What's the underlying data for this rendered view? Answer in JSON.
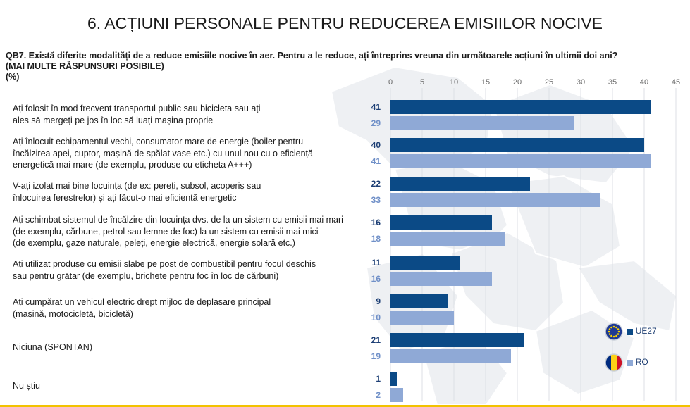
{
  "title": "6. ACȚIUNI PERSONALE PENTRU REDUCEREA EMISIILOR NOCIVE",
  "question": {
    "line1": "QB7. Există diferite modalități de a reduce emisiile nocive în aer. Pentru a le reduce, ați întreprins vreuna din următoarele acțiuni în ultimii doi ani?",
    "line2": "(MAI MULTE RĂSPUNSURI POSIBILE)",
    "line3": "(%)"
  },
  "colors": {
    "ue27": "#0b4a86",
    "ro": "#8fa9d6",
    "ue27_label": "#1d3f75",
    "ro_label": "#7090c8",
    "accent_line": "#f2c200"
  },
  "legend": {
    "ue27": "UE27",
    "ro": "RO",
    "ue27_icon": "eu-flag-icon",
    "ro_icon": "romania-flag-icon"
  },
  "chart_data": {
    "type": "bar",
    "orientation": "horizontal",
    "xlim": [
      0,
      45
    ],
    "xticks": [
      0,
      5,
      10,
      15,
      20,
      25,
      30,
      35,
      40,
      45
    ],
    "grid": true,
    "legend_position": "bottom-right",
    "categories": [
      "Ați folosit în mod frecvent transportul public sau bicicleta sau ați ales să mergeți pe jos în loc să luați mașina proprie",
      "Ați înlocuit echipamentul vechi, consumator mare de energie (boiler pentru încălzirea apei, cuptor, mașină de spălat vase etc.) cu unul nou cu o eficiență energetică mai mare (de exemplu, produse cu eticheta A+++)",
      "V-ați izolat mai bine locuința (de ex: pereți, subsol, acoperiș sau înlocuirea ferestrelor) și ați făcut-o mai eficientă energetic",
      "Ați schimbat sistemul de încălzire din locuința dvs. de la un sistem cu emisii mai mari (de exemplu, cărbune, petrol sau lemne de foc) la un sistem cu emisii mai mici (de exemplu, gaze naturale, peleți, energie electrică, energie solară etc.)",
      "Ați utilizat produse cu emisii slabe pe post de combustibil pentru focul deschis sau pentru grătar (de exemplu, brichete pentru foc în loc de cărbuni)",
      "Ați cumpărat un vehicul electric drept mijloc de deplasare principal (mașină, motocicletă, bicicletă)",
      "Niciuna (SPONTAN)",
      "Nu știu"
    ],
    "label_lines": [
      [
        "Ați folosit în mod frecvent transportul public sau bicicleta sau ați",
        "ales să mergeți pe jos în loc să luați mașina proprie"
      ],
      [
        "Ați înlocuit echipamentul vechi, consumator mare de energie (boiler pentru",
        "încălzirea apei, cuptor, mașină de spălat vase etc.) cu unul nou cu o eficiență",
        "energetică mai mare (de exemplu, produse cu eticheta A+++)"
      ],
      [
        "V-ați izolat mai bine locuința (de ex: pereți, subsol, acoperiș sau",
        "înlocuirea ferestrelor) și ați făcut-o mai eficientă energetic"
      ],
      [
        "Ați schimbat sistemul de încălzire din locuința dvs. de la un sistem cu emisii mai mari",
        "(de exemplu, cărbune, petrol sau lemne de foc) la un sistem cu emisii mai mici",
        "(de exemplu, gaze naturale, peleți, energie electrică, energie solară etc.)"
      ],
      [
        "Ați utilizat produse cu emisii slabe pe post de combustibil pentru focul deschis",
        "sau pentru grătar (de exemplu, brichete pentru foc în loc de cărbuni)"
      ],
      [
        "Ați cumpărat un vehicul electric drept mijloc de deplasare principal",
        "(mașină, motocicletă, bicicletă)"
      ],
      [
        "Niciuna (SPONTAN)"
      ],
      [
        "Nu știu"
      ]
    ],
    "series": [
      {
        "name": "UE27",
        "values": [
          41,
          40,
          22,
          16,
          11,
          9,
          21,
          1
        ]
      },
      {
        "name": "RO",
        "values": [
          29,
          41,
          33,
          18,
          16,
          10,
          19,
          2
        ]
      }
    ]
  }
}
